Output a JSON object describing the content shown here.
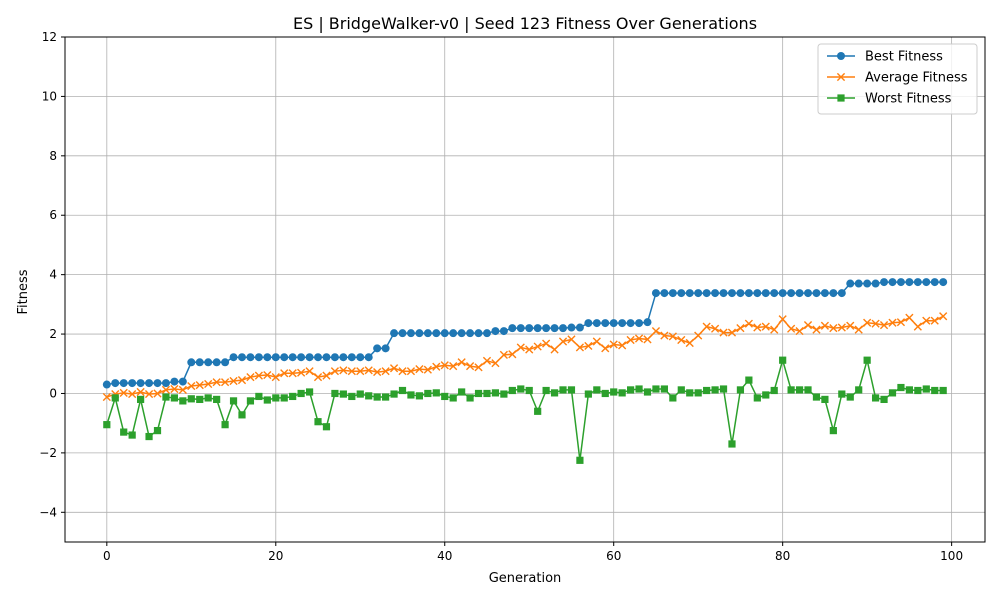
{
  "chart_data": {
    "type": "line",
    "title": "ES | BridgeWalker-v0 | Seed 123 Fitness Over Generations",
    "xlabel": "Generation",
    "ylabel": "Fitness",
    "xlim": [
      -4.95,
      103.95
    ],
    "ylim": [
      -5,
      12
    ],
    "xticks": [
      0,
      20,
      40,
      60,
      80,
      100
    ],
    "yticks": [
      -4,
      -2,
      0,
      2,
      4,
      6,
      8,
      10,
      12
    ],
    "xtick_labels": [
      "0",
      "20",
      "40",
      "60",
      "80",
      "100"
    ],
    "ytick_labels": [
      "−4",
      "−2",
      "0",
      "2",
      "4",
      "6",
      "8",
      "10",
      "12"
    ],
    "grid": true,
    "legend_position": "top-right",
    "x": [
      0,
      1,
      2,
      3,
      4,
      5,
      6,
      7,
      8,
      9,
      10,
      11,
      12,
      13,
      14,
      15,
      16,
      17,
      18,
      19,
      20,
      21,
      22,
      23,
      24,
      25,
      26,
      27,
      28,
      29,
      30,
      31,
      32,
      33,
      34,
      35,
      36,
      37,
      38,
      39,
      40,
      41,
      42,
      43,
      44,
      45,
      46,
      47,
      48,
      49,
      50,
      51,
      52,
      53,
      54,
      55,
      56,
      57,
      58,
      59,
      60,
      61,
      62,
      63,
      64,
      65,
      66,
      67,
      68,
      69,
      70,
      71,
      72,
      73,
      74,
      75,
      76,
      77,
      78,
      79,
      80,
      81,
      82,
      83,
      84,
      85,
      86,
      87,
      88,
      89,
      90,
      91,
      92,
      93,
      94,
      95,
      96,
      97,
      98,
      99
    ],
    "series": [
      {
        "name": "Best Fitness",
        "color": "#1f77b4",
        "marker": "circle",
        "values": [
          0.3,
          0.35,
          0.35,
          0.35,
          0.35,
          0.35,
          0.35,
          0.35,
          0.4,
          0.4,
          1.05,
          1.05,
          1.05,
          1.05,
          1.05,
          1.22,
          1.22,
          1.22,
          1.22,
          1.22,
          1.22,
          1.22,
          1.22,
          1.22,
          1.22,
          1.22,
          1.22,
          1.22,
          1.22,
          1.22,
          1.22,
          1.22,
          1.52,
          1.52,
          2.03,
          2.03,
          2.03,
          2.03,
          2.03,
          2.03,
          2.03,
          2.03,
          2.03,
          2.03,
          2.03,
          2.03,
          2.1,
          2.1,
          2.2,
          2.2,
          2.2,
          2.2,
          2.2,
          2.2,
          2.2,
          2.22,
          2.22,
          2.37,
          2.37,
          2.37,
          2.37,
          2.37,
          2.37,
          2.37,
          2.4,
          3.38,
          3.38,
          3.38,
          3.38,
          3.38,
          3.38,
          3.38,
          3.38,
          3.38,
          3.38,
          3.38,
          3.38,
          3.38,
          3.38,
          3.38,
          3.38,
          3.38,
          3.38,
          3.38,
          3.38,
          3.38,
          3.38,
          3.38,
          3.7,
          3.7,
          3.7,
          3.7,
          3.75,
          3.75,
          3.75,
          3.75,
          3.75,
          3.75,
          3.75,
          3.75
        ]
      },
      {
        "name": "Average Fitness",
        "color": "#ff7f0e",
        "marker": "x",
        "values": [
          -0.12,
          -0.02,
          0.02,
          -0.02,
          0.05,
          -0.02,
          0.0,
          0.12,
          0.15,
          0.12,
          0.25,
          0.28,
          0.32,
          0.38,
          0.38,
          0.42,
          0.45,
          0.55,
          0.6,
          0.62,
          0.55,
          0.68,
          0.68,
          0.7,
          0.75,
          0.55,
          0.6,
          0.75,
          0.78,
          0.75,
          0.75,
          0.78,
          0.72,
          0.75,
          0.85,
          0.75,
          0.75,
          0.82,
          0.8,
          0.9,
          0.95,
          0.92,
          1.05,
          0.92,
          0.88,
          1.1,
          1.02,
          1.3,
          1.32,
          1.55,
          1.48,
          1.58,
          1.68,
          1.48,
          1.75,
          1.82,
          1.55,
          1.6,
          1.75,
          1.52,
          1.65,
          1.62,
          1.8,
          1.85,
          1.82,
          2.1,
          1.95,
          1.92,
          1.8,
          1.7,
          1.95,
          2.25,
          2.18,
          2.05,
          2.05,
          2.2,
          2.35,
          2.22,
          2.25,
          2.15,
          2.5,
          2.18,
          2.1,
          2.3,
          2.15,
          2.28,
          2.2,
          2.22,
          2.28,
          2.15,
          2.38,
          2.35,
          2.3,
          2.38,
          2.4,
          2.55,
          2.25,
          2.45,
          2.45,
          2.6
        ]
      },
      {
        "name": "Worst Fitness",
        "color": "#2ca02c",
        "marker": "square",
        "values": [
          -1.05,
          -0.15,
          -1.3,
          -1.4,
          -0.2,
          -1.45,
          -1.25,
          -0.12,
          -0.15,
          -0.25,
          -0.18,
          -0.2,
          -0.15,
          -0.2,
          -1.05,
          -0.25,
          -0.72,
          -0.25,
          -0.1,
          -0.22,
          -0.15,
          -0.15,
          -0.1,
          0.0,
          0.05,
          -0.95,
          -1.12,
          0.0,
          -0.02,
          -0.1,
          -0.02,
          -0.08,
          -0.12,
          -0.12,
          -0.02,
          0.1,
          -0.05,
          -0.08,
          0.0,
          0.02,
          -0.1,
          -0.15,
          0.05,
          -0.15,
          0.0,
          0.0,
          0.02,
          -0.02,
          0.1,
          0.15,
          0.1,
          -0.6,
          0.1,
          0.02,
          0.12,
          0.12,
          -2.25,
          -0.02,
          0.12,
          0.0,
          0.05,
          0.02,
          0.12,
          0.15,
          0.05,
          0.15,
          0.15,
          -0.15,
          0.12,
          0.02,
          0.02,
          0.1,
          0.12,
          0.15,
          -1.7,
          0.12,
          0.45,
          -0.15,
          -0.05,
          0.1,
          1.12,
          0.12,
          0.12,
          0.12,
          -0.12,
          -0.2,
          -1.25,
          -0.02,
          -0.12,
          0.12,
          1.12,
          -0.15,
          -0.2,
          0.02,
          0.2,
          0.12,
          0.1,
          0.15,
          0.1,
          0.1
        ]
      }
    ]
  }
}
